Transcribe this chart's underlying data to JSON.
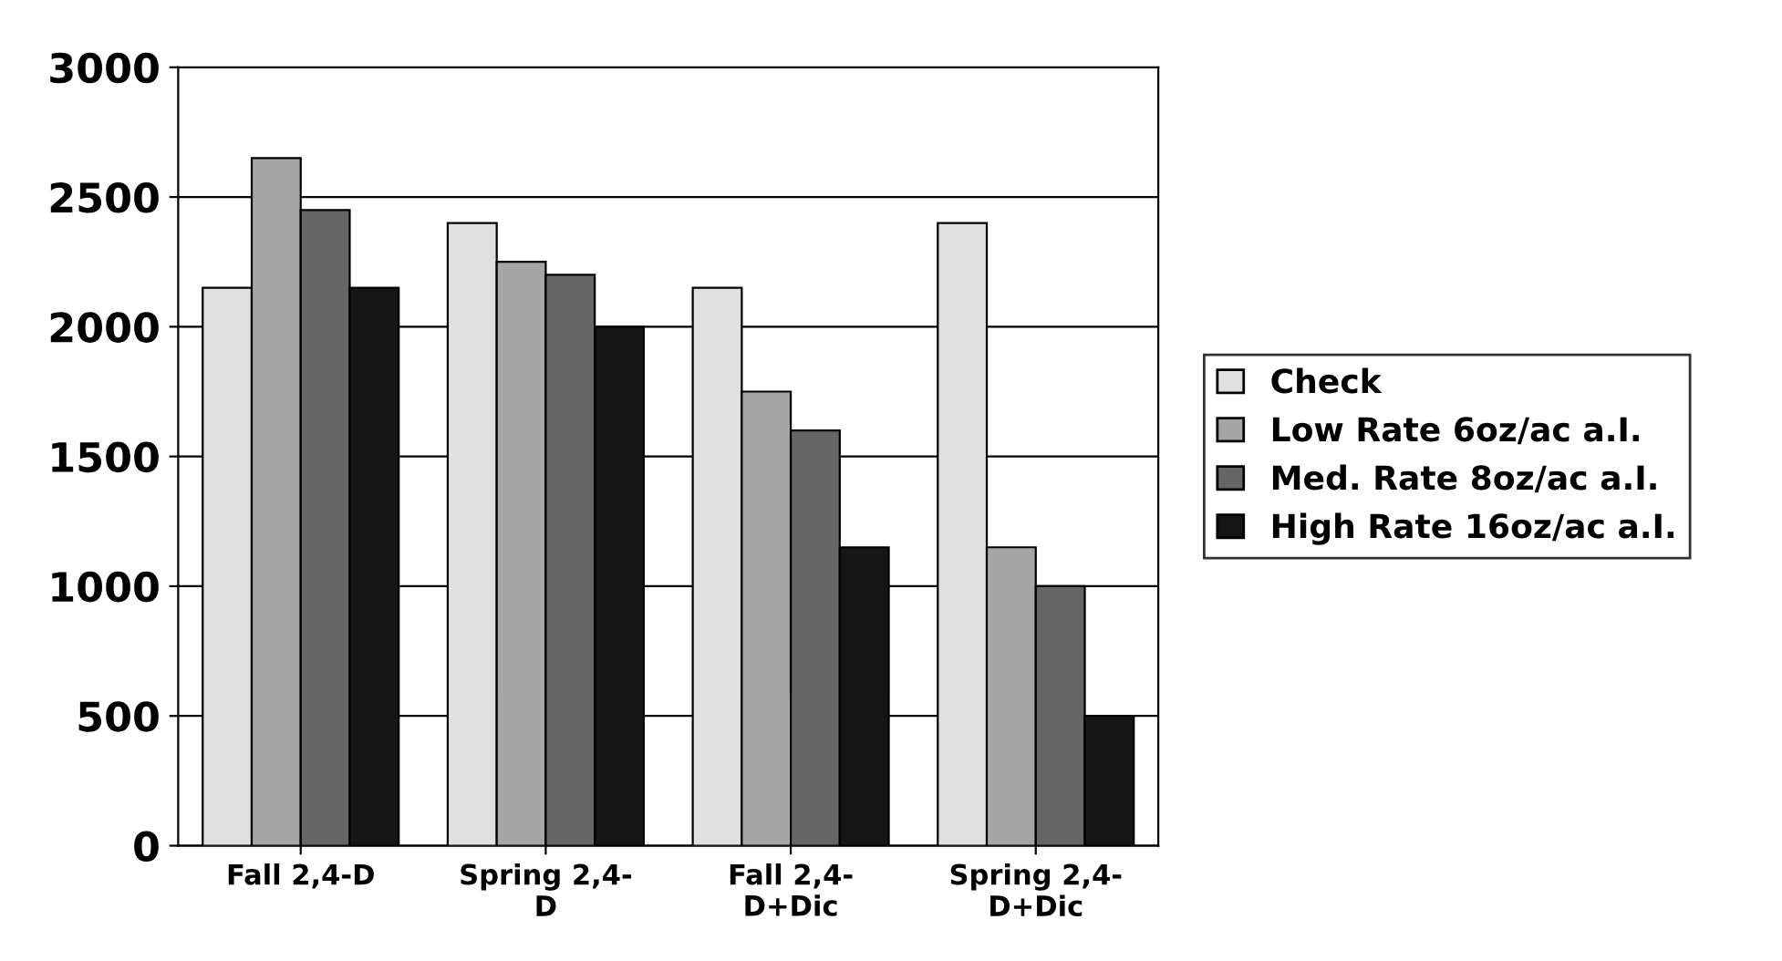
{
  "chart_data": {
    "type": "bar",
    "categories": [
      "Fall 2,4-D",
      "Spring 2,4-\nD",
      "Fall 2,4-\nD+Dic",
      "Spring 2,4-\nD+Dic"
    ],
    "series": [
      {
        "name": "Check",
        "color": "#e0e0e0",
        "values": [
          2150,
          2400,
          2150,
          2400
        ]
      },
      {
        "name": "Low Rate 6oz/ac a.I.",
        "color": "#a6a6a6",
        "values": [
          2650,
          2250,
          1750,
          1150
        ]
      },
      {
        "name": "Med. Rate 8oz/ac a.I.",
        "color": "#666666",
        "values": [
          2450,
          2200,
          1600,
          1000
        ]
      },
      {
        "name": "High Rate 16oz/ac a.I.",
        "color": "#161616",
        "values": [
          2150,
          2000,
          1150,
          500
        ]
      }
    ],
    "ylim": [
      0,
      3000
    ],
    "yticks": [
      0,
      500,
      1000,
      1500,
      2000,
      2500,
      3000
    ],
    "grid": "y",
    "legend": "right"
  }
}
